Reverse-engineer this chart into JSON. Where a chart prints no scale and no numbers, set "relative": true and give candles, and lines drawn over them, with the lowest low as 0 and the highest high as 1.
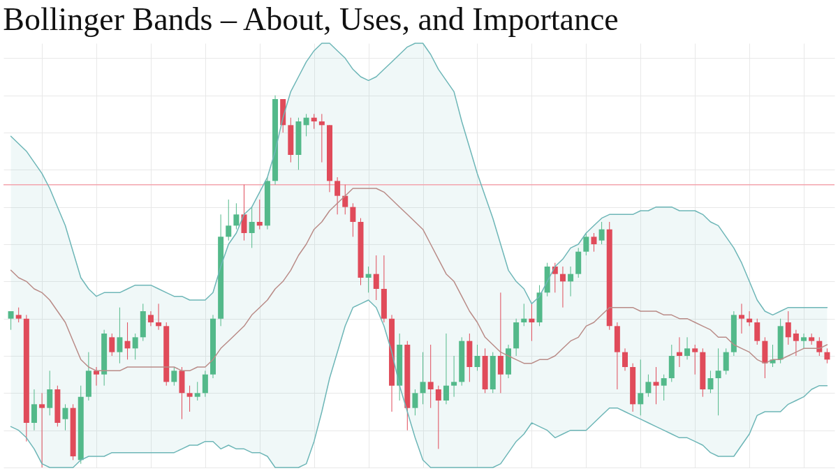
{
  "chart_data": {
    "type": "candlestick",
    "title": "Bollinger Bands – About, Uses, and Importance",
    "relative": true,
    "grid": true,
    "categories": [
      null,
      null,
      null,
      null,
      null,
      null,
      null,
      null,
      null,
      null,
      null,
      null,
      null,
      null,
      null,
      null,
      null,
      null,
      null,
      null,
      null,
      null,
      null,
      null,
      null,
      null,
      null,
      null,
      null,
      null,
      null,
      null,
      null,
      null,
      null,
      null,
      null,
      null,
      null,
      null,
      null,
      null,
      null,
      null,
      null,
      null,
      null,
      null,
      null,
      null,
      null,
      null,
      null,
      null,
      null,
      null,
      null,
      null,
      null,
      null,
      null,
      null,
      null,
      null,
      null,
      null,
      null,
      null,
      null,
      null,
      null,
      null,
      null,
      null,
      null,
      null,
      null,
      null,
      null,
      null,
      null,
      null,
      null,
      null,
      null,
      null,
      null,
      null,
      null,
      null,
      null,
      null,
      null,
      null,
      null,
      null,
      null,
      null,
      null,
      null,
      null,
      null,
      null,
      null,
      null,
      null
    ],
    "ohlc": [
      [
        0.4,
        0.42,
        0.37,
        0.42
      ],
      [
        0.41,
        0.43,
        0.39,
        0.4
      ],
      [
        0.4,
        0.41,
        0.07,
        0.12
      ],
      [
        0.12,
        0.21,
        0.1,
        0.17
      ],
      [
        0.17,
        0.2,
        0,
        0.16
      ],
      [
        0.16,
        0.26,
        0.14,
        0.21
      ],
      [
        0.21,
        0.22,
        0.11,
        0.12
      ],
      [
        0.13,
        0.17,
        0.1,
        0.16
      ],
      [
        0.16,
        0.17,
        0.02,
        0.03
      ],
      [
        0.02,
        0.22,
        0.01,
        0.19
      ],
      [
        0.19,
        0.31,
        0.18,
        0.26
      ],
      [
        0.26,
        0.27,
        0.22,
        0.25
      ],
      [
        0.25,
        0.37,
        0.22,
        0.36
      ],
      [
        0.35,
        0.36,
        0.3,
        0.31
      ],
      [
        0.31,
        0.43,
        0.28,
        0.35
      ],
      [
        0.34,
        0.39,
        0.29,
        0.32
      ],
      [
        0.32,
        0.36,
        0.29,
        0.35
      ],
      [
        0.35,
        0.44,
        0.34,
        0.42
      ],
      [
        0.41,
        0.42,
        0.38,
        0.39
      ],
      [
        0.39,
        0.44,
        0.37,
        0.38
      ],
      [
        0.38,
        0.39,
        0.22,
        0.23
      ],
      [
        0.23,
        0.27,
        0.22,
        0.26
      ],
      [
        0.26,
        0.27,
        0.13,
        0.2
      ],
      [
        0.2,
        0.22,
        0.15,
        0.19
      ],
      [
        0.19,
        0.23,
        0.18,
        0.2
      ],
      [
        0.2,
        0.26,
        0.19,
        0.25
      ],
      [
        0.25,
        0.41,
        0.24,
        0.4
      ],
      [
        0.4,
        0.68,
        0.38,
        0.62
      ],
      [
        0.62,
        0.72,
        0.61,
        0.65
      ],
      [
        0.65,
        0.71,
        0.64,
        0.68
      ],
      [
        0.68,
        0.76,
        0.61,
        0.63
      ],
      [
        0.63,
        0.7,
        0.59,
        0.66
      ],
      [
        0.66,
        0.72,
        0.64,
        0.65
      ],
      [
        0.65,
        0.78,
        0.64,
        0.77
      ],
      [
        0.77,
        1,
        0.76,
        0.99
      ],
      [
        0.99,
        0.99,
        0.9,
        0.92
      ],
      [
        0.92,
        0.94,
        0.82,
        0.84
      ],
      [
        0.84,
        0.94,
        0.8,
        0.93
      ],
      [
        0.92,
        0.95,
        0.89,
        0.94
      ],
      [
        0.94,
        0.95,
        0.91,
        0.93
      ],
      [
        0.93,
        0.95,
        0.82,
        0.92
      ],
      [
        0.92,
        0.92,
        0.74,
        0.77
      ],
      [
        0.77,
        0.78,
        0.68,
        0.73
      ],
      [
        0.73,
        0.76,
        0.68,
        0.7
      ],
      [
        0.7,
        0.71,
        0.62,
        0.66
      ],
      [
        0.66,
        0.67,
        0.49,
        0.51
      ],
      [
        0.51,
        0.54,
        0.47,
        0.52
      ],
      [
        0.52,
        0.57,
        0.45,
        0.48
      ],
      [
        0.48,
        0.57,
        0.39,
        0.4
      ],
      [
        0.4,
        0.41,
        0.15,
        0.22
      ],
      [
        0.22,
        0.36,
        0.18,
        0.33
      ],
      [
        0.33,
        0.34,
        0.1,
        0.16
      ],
      [
        0.16,
        0.21,
        0.14,
        0.2
      ],
      [
        0.2,
        0.31,
        0.17,
        0.23
      ],
      [
        0.23,
        0.33,
        0.16,
        0.21
      ],
      [
        0.21,
        0.22,
        0.05,
        0.18
      ],
      [
        0.18,
        0.36,
        0.17,
        0.22
      ],
      [
        0.22,
        0.3,
        0.19,
        0.23
      ],
      [
        0.23,
        0.35,
        0.22,
        0.34
      ],
      [
        0.34,
        0.36,
        0.23,
        0.27
      ],
      [
        0.27,
        0.33,
        0.26,
        0.3
      ],
      [
        0.3,
        0.32,
        0.2,
        0.21
      ],
      [
        0.21,
        0.31,
        0.2,
        0.3
      ],
      [
        0.3,
        0.47,
        0.2,
        0.25
      ],
      [
        0.25,
        0.33,
        0.24,
        0.32
      ],
      [
        0.32,
        0.4,
        0.3,
        0.39
      ],
      [
        0.39,
        0.44,
        0.38,
        0.4
      ],
      [
        0.4,
        0.44,
        0.34,
        0.39
      ],
      [
        0.39,
        0.49,
        0.38,
        0.47
      ],
      [
        0.47,
        0.55,
        0.46,
        0.54
      ],
      [
        0.54,
        0.55,
        0.47,
        0.52
      ],
      [
        0.52,
        0.54,
        0.43,
        0.5
      ],
      [
        0.5,
        0.54,
        0.46,
        0.52
      ],
      [
        0.52,
        0.59,
        0.51,
        0.58
      ],
      [
        0.58,
        0.63,
        0.57,
        0.62
      ],
      [
        0.62,
        0.63,
        0.58,
        0.6
      ],
      [
        0.61,
        0.66,
        0.6,
        0.64
      ],
      [
        0.64,
        0.66,
        0.37,
        0.38
      ],
      [
        0.38,
        0.39,
        0.21,
        0.31
      ],
      [
        0.31,
        0.32,
        0.26,
        0.27
      ],
      [
        0.27,
        0.28,
        0.15,
        0.17
      ],
      [
        0.17,
        0.29,
        0.14,
        0.2
      ],
      [
        0.2,
        0.25,
        0.19,
        0.23
      ],
      [
        0.23,
        0.27,
        0.17,
        0.22
      ],
      [
        0.22,
        0.25,
        0.18,
        0.24
      ],
      [
        0.24,
        0.33,
        0.23,
        0.3
      ],
      [
        0.31,
        0.35,
        0.27,
        0.3
      ],
      [
        0.3,
        0.35,
        0.29,
        0.32
      ],
      [
        0.32,
        0.33,
        0.25,
        0.31
      ],
      [
        0.31,
        0.32,
        0.19,
        0.21
      ],
      [
        0.21,
        0.26,
        0.2,
        0.24
      ],
      [
        0.24,
        0.32,
        0.14,
        0.26
      ],
      [
        0.26,
        0.32,
        0.25,
        0.31
      ],
      [
        0.31,
        0.42,
        0.3,
        0.41
      ],
      [
        0.41,
        0.44,
        0.36,
        0.4
      ],
      [
        0.4,
        0.42,
        0.38,
        0.39
      ],
      [
        0.39,
        0.4,
        0.33,
        0.34
      ],
      [
        0.34,
        0.35,
        0.24,
        0.28
      ],
      [
        0.28,
        0.33,
        0.27,
        0.29
      ],
      [
        0.29,
        0.4,
        0.28,
        0.38
      ],
      [
        0.39,
        0.42,
        0.33,
        0.35
      ],
      [
        0.36,
        0.37,
        0.3,
        0.34
      ],
      [
        0.34,
        0.36,
        0.32,
        0.35
      ],
      [
        0.35,
        0.36,
        0.33,
        0.34
      ],
      [
        0.34,
        0.35,
        0.3,
        0.31
      ],
      [
        0.31,
        0.32,
        0.28,
        0.29
      ]
    ],
    "colors": [
      "#53b98a",
      "#e04b5a",
      "#e04b5a",
      "#53b98a",
      "#e04b5a",
      "#53b98a",
      "#e04b5a",
      "#53b98a",
      "#e04b5a",
      "#53b98a",
      "#53b98a",
      "#e04b5a",
      "#53b98a",
      "#e04b5a",
      "#53b98a",
      "#e04b5a",
      "#53b98a",
      "#53b98a",
      "#e04b5a",
      "#e04b5a",
      "#e04b5a",
      "#53b98a",
      "#e04b5a",
      "#e04b5a",
      "#53b98a",
      "#53b98a",
      "#53b98a",
      "#53b98a",
      "#53b98a",
      "#53b98a",
      "#e04b5a",
      "#53b98a",
      "#e04b5a",
      "#53b98a",
      "#53b98a",
      "#e04b5a",
      "#e04b5a",
      "#53b98a",
      "#53b98a",
      "#e04b5a",
      "#e04b5a",
      "#e04b5a",
      "#e04b5a",
      "#e04b5a",
      "#e04b5a",
      "#e04b5a",
      "#53b98a",
      "#e04b5a",
      "#e04b5a",
      "#e04b5a",
      "#53b98a",
      "#e04b5a",
      "#53b98a",
      "#53b98a",
      "#e04b5a",
      "#e04b5a",
      "#53b98a",
      "#53b98a",
      "#53b98a",
      "#e04b5a",
      "#53b98a",
      "#e04b5a",
      "#53b98a",
      "#e04b5a",
      "#53b98a",
      "#53b98a",
      "#53b98a",
      "#e04b5a",
      "#53b98a",
      "#53b98a",
      "#e04b5a",
      "#e04b5a",
      "#53b98a",
      "#53b98a",
      "#53b98a",
      "#e04b5a",
      "#53b98a",
      "#e04b5a",
      "#e04b5a",
      "#e04b5a",
      "#e04b5a",
      "#53b98a",
      "#53b98a",
      "#e04b5a",
      "#53b98a",
      "#53b98a",
      "#e04b5a",
      "#53b98a",
      "#e04b5a",
      "#e04b5a",
      "#53b98a",
      "#53b98a",
      "#53b98a",
      "#53b98a",
      "#e04b5a",
      "#e04b5a",
      "#e04b5a",
      "#e04b5a",
      "#53b98a",
      "#53b98a",
      "#e04b5a",
      "#e04b5a",
      "#53b98a",
      "#e04b5a",
      "#e04b5a",
      "#e04b5a"
    ],
    "series": [
      {
        "type": "line",
        "color": "#b98b87",
        "values": [
          0.53,
          0.51,
          0.5,
          0.48,
          0.47,
          0.45,
          0.42,
          0.39,
          0.34,
          0.29,
          0.27,
          0.26,
          0.26,
          0.26,
          0.26,
          0.27,
          0.27,
          0.27,
          0.27,
          0.27,
          0.27,
          0.27,
          0.26,
          0.26,
          0.27,
          0.27,
          0.29,
          0.32,
          0.34,
          0.36,
          0.38,
          0.41,
          0.43,
          0.45,
          0.48,
          0.5,
          0.53,
          0.57,
          0.6,
          0.64,
          0.66,
          0.69,
          0.71,
          0.73,
          0.75,
          0.75,
          0.75,
          0.75,
          0.74,
          0.72,
          0.7,
          0.68,
          0.66,
          0.64,
          0.6,
          0.56,
          0.52,
          0.5,
          0.46,
          0.42,
          0.39,
          0.35,
          0.33,
          0.31,
          0.3,
          0.29,
          0.28,
          0.28,
          0.29,
          0.29,
          0.3,
          0.32,
          0.34,
          0.35,
          0.38,
          0.39,
          0.41,
          0.43,
          0.43,
          0.43,
          0.43,
          0.42,
          0.42,
          0.42,
          0.41,
          0.41,
          0.4,
          0.4,
          0.39,
          0.38,
          0.37,
          0.35,
          0.35,
          0.33,
          0.32,
          0.31,
          0.29,
          0.28,
          0.29,
          0.29,
          0.3,
          0.31,
          0.32,
          0.32,
          0.32,
          0.33
        ],
        "upper": [
          0.89,
          0.87,
          0.85,
          0.82,
          0.79,
          0.75,
          0.7,
          0.65,
          0.58,
          0.51,
          0.48,
          0.46,
          0.47,
          0.47,
          0.47,
          0.48,
          0.49,
          0.49,
          0.49,
          0.48,
          0.47,
          0.46,
          0.46,
          0.45,
          0.45,
          0.45,
          0.47,
          0.54,
          0.6,
          0.63,
          0.68,
          0.7,
          0.74,
          0.78,
          0.85,
          0.94,
          1.01,
          1.05,
          1.09,
          1.12,
          1.14,
          1.14,
          1.12,
          1.1,
          1.07,
          1.05,
          1.04,
          1.05,
          1.07,
          1.09,
          1.11,
          1.13,
          1.14,
          1.14,
          1.11,
          1.07,
          1.04,
          1.01,
          0.93,
          0.86,
          0.79,
          0.73,
          0.67,
          0.6,
          0.53,
          0.5,
          0.48,
          0.44,
          0.46,
          0.5,
          0.54,
          0.56,
          0.59,
          0.6,
          0.63,
          0.65,
          0.67,
          0.68,
          0.68,
          0.68,
          0.68,
          0.69,
          0.69,
          0.7,
          0.7,
          0.7,
          0.69,
          0.69,
          0.69,
          0.68,
          0.66,
          0.65,
          0.62,
          0.59,
          0.55,
          0.5,
          0.45,
          0.42,
          0.41,
          0.42,
          0.43,
          0.43,
          0.43,
          0.43,
          0.43,
          0.43
        ],
        "lower": [
          0.11,
          0.1,
          0.08,
          0.05,
          0.01,
          0,
          0,
          0,
          0,
          0.02,
          0.03,
          0.03,
          0.03,
          0.04,
          0.04,
          0.04,
          0.04,
          0.04,
          0.04,
          0.04,
          0.04,
          0.04,
          0.05,
          0.06,
          0.06,
          0.07,
          0.07,
          0.05,
          0.06,
          0.05,
          0.05,
          0.04,
          0.04,
          0.03,
          0,
          0,
          0,
          0,
          0.01,
          0.07,
          0.15,
          0.24,
          0.31,
          0.38,
          0.43,
          0.44,
          0.45,
          0.43,
          0.38,
          0.31,
          0.22,
          0.15,
          0.08,
          0.02,
          0,
          0,
          0,
          0,
          0,
          0,
          0,
          0,
          0,
          0.01,
          0.04,
          0.07,
          0.09,
          0.12,
          0.11,
          0.1,
          0.08,
          0.09,
          0.1,
          0.1,
          0.1,
          0.12,
          0.14,
          0.16,
          0.16,
          0.15,
          0.14,
          0.13,
          0.12,
          0.11,
          0.1,
          0.09,
          0.08,
          0.08,
          0.07,
          0.06,
          0.04,
          0.03,
          0.03,
          0.03,
          0.06,
          0.09,
          0.14,
          0.15,
          0.15,
          0.15,
          0.17,
          0.18,
          0.19,
          0.21,
          0.22,
          0.22
        ]
      },
      {
        "type": "line",
        "color": "#6db6b7",
        "values": [
          0.89,
          0.87,
          0.85,
          0.82,
          0.79,
          0.75,
          0.7,
          0.65,
          0.58,
          0.51,
          0.48,
          0.46,
          0.47,
          0.47,
          0.47,
          0.48,
          0.49,
          0.49,
          0.49,
          0.48,
          0.47,
          0.46,
          0.46,
          0.45,
          0.45,
          0.45,
          0.47,
          0.54,
          0.6,
          0.63,
          0.68,
          0.7,
          0.74,
          0.78,
          0.85,
          0.94,
          1.01,
          1.05,
          1.09,
          1.12,
          1.14,
          1.14,
          1.12,
          1.1,
          1.07,
          1.05,
          1.04,
          1.05,
          1.07,
          1.09,
          1.11,
          1.13,
          1.14,
          1.14,
          1.11,
          1.07,
          1.04,
          1.01,
          0.93,
          0.86,
          0.79,
          0.73,
          0.67,
          0.6,
          0.53,
          0.5,
          0.48,
          0.44,
          0.46,
          0.5,
          0.54,
          0.56,
          0.59,
          0.6,
          0.63,
          0.65,
          0.67,
          0.68,
          0.68,
          0.68,
          0.68,
          0.69,
          0.69,
          0.7,
          0.7,
          0.7,
          0.69,
          0.69,
          0.69,
          0.68,
          0.66,
          0.65,
          0.62,
          0.59,
          0.55,
          0.5,
          0.45,
          0.42,
          0.41,
          0.42,
          0.43,
          0.43,
          0.43,
          0.43,
          0.43,
          0.43
        ]
      },
      {
        "type": "line",
        "color": "#6db6b7",
        "values": [
          0.11,
          0.1,
          0.08,
          0.05,
          0.01,
          0,
          0,
          0,
          0,
          0.02,
          0.03,
          0.03,
          0.03,
          0.04,
          0.04,
          0.04,
          0.04,
          0.04,
          0.04,
          0.04,
          0.04,
          0.04,
          0.05,
          0.06,
          0.06,
          0.07,
          0.07,
          0.05,
          0.06,
          0.05,
          0.05,
          0.04,
          0.04,
          0.03,
          0,
          0,
          0,
          0,
          0.01,
          0.07,
          0.15,
          0.24,
          0.31,
          0.38,
          0.43,
          0.44,
          0.45,
          0.43,
          0.38,
          0.31,
          0.22,
          0.15,
          0.08,
          0.02,
          0,
          0,
          0,
          0,
          0,
          0,
          0,
          0,
          0,
          0.01,
          0.04,
          0.07,
          0.09,
          0.12,
          0.11,
          0.1,
          0.08,
          0.09,
          0.1,
          0.1,
          0.1,
          0.12,
          0.14,
          0.16,
          0.16,
          0.15,
          0.14,
          0.13,
          0.12,
          0.11,
          0.1,
          0.09,
          0.08,
          0.08,
          0.07,
          0.06,
          0.04,
          0.03,
          0.03,
          0.03,
          0.06,
          0.09,
          0.14,
          0.15,
          0.15,
          0.15,
          0.17,
          0.18,
          0.19,
          0.21,
          0.22,
          0.22
        ]
      }
    ],
    "ref_lines": [
      {
        "axis": "y",
        "value": 0.76,
        "color": "#f3a4ad"
      }
    ]
  }
}
